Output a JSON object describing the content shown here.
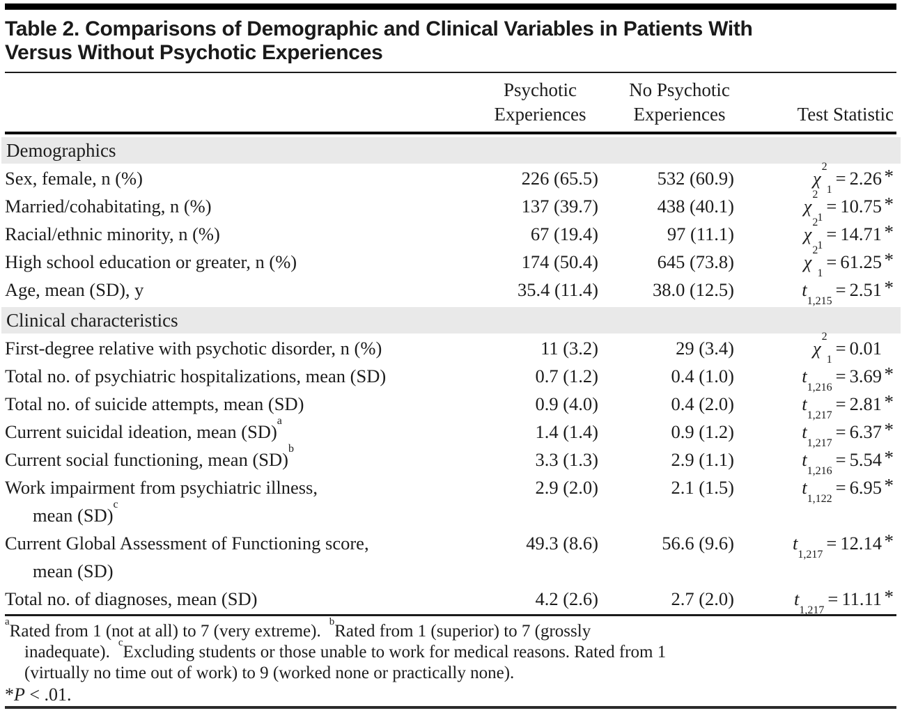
{
  "title": {
    "line1": "Table 2. Comparisons of Demographic and Clinical Variables in Patients With",
    "line2": "Versus Without Psychotic Experiences"
  },
  "header": {
    "col_pe_line1": "Psychotic",
    "col_pe_line2": "Experiences",
    "col_npe_line1": "No Psychotic",
    "col_npe_line2": "Experiences",
    "col_stat": "Test Statistic"
  },
  "glyphs": {
    "equals": "="
  },
  "sections": [
    {
      "label": "Demographics",
      "rows": [
        {
          "label": "Sex, female, n (%)",
          "pe": "226 (65.5)",
          "npe": "532 (60.9)",
          "stat": {
            "sym": "χ",
            "sup": "2",
            "sub": "1",
            "value": "2.26",
            "star": "*"
          }
        },
        {
          "label": "Married/cohabitating, n (%)",
          "pe": "137 (39.7)",
          "npe": "438 (40.1)",
          "stat": {
            "sym": "χ",
            "sup": "2",
            "sub": "1",
            "value": "10.75",
            "star": "*"
          }
        },
        {
          "label": "Racial/ethnic minority, n (%)",
          "pe": "67 (19.4)",
          "npe": "97 (11.1)",
          "stat": {
            "sym": "χ",
            "sup": "2",
            "sub": "1",
            "value": "14.71",
            "star": "*"
          }
        },
        {
          "label": "High school education or greater, n (%)",
          "pe": "174 (50.4)",
          "npe": "645 (73.8)",
          "stat": {
            "sym": "χ",
            "sup": "2",
            "sub": "1",
            "value": "61.25",
            "star": "*"
          }
        },
        {
          "label": "Age, mean (SD), y",
          "pe": "35.4 (11.4)",
          "npe": "38.0 (12.5)",
          "stat": {
            "sym": "t",
            "sup": "",
            "sub": "1,215",
            "value": "2.51",
            "star": "*"
          }
        }
      ]
    },
    {
      "label": "Clinical characteristics",
      "rows": [
        {
          "label": "First-degree relative with psychotic disorder, n (%)",
          "pe": "11 (3.2)",
          "npe": "29 (3.4)",
          "stat": {
            "sym": "χ",
            "sup": "2",
            "sub": "1",
            "value": "0.01",
            "star": ""
          }
        },
        {
          "label": "Total no. of psychiatric hospitalizations, mean (SD)",
          "pe": "0.7 (1.2)",
          "npe": "0.4 (1.0)",
          "stat": {
            "sym": "t",
            "sup": "",
            "sub": "1,216",
            "value": "3.69",
            "star": "*"
          }
        },
        {
          "label": "Total no. of suicide attempts, mean (SD)",
          "pe": "0.9 (4.0)",
          "npe": "0.4 (2.0)",
          "stat": {
            "sym": "t",
            "sup": "",
            "sub": "1,217",
            "value": "2.81",
            "star": "*"
          }
        },
        {
          "label": "Current suicidal ideation, mean (SD)",
          "label_sup": "a",
          "pe": "1.4 (1.4)",
          "npe": "0.9 (1.2)",
          "stat": {
            "sym": "t",
            "sup": "",
            "sub": "1,217",
            "value": "6.37",
            "star": "*"
          }
        },
        {
          "label": "Current social functioning, mean (SD)",
          "label_sup": "b",
          "pe": "3.3 (1.3)",
          "npe": "2.9 (1.1)",
          "stat": {
            "sym": "t",
            "sup": "",
            "sub": "1,216",
            "value": "5.54",
            "star": "*"
          }
        },
        {
          "label": "Work impairment from psychiatric illness,",
          "label2": "mean (SD)",
          "label2_sup": "c",
          "pe": "2.9 (2.0)",
          "npe": "2.1 (1.5)",
          "stat": {
            "sym": "t",
            "sup": "",
            "sub": "1,122",
            "value": "6.95",
            "star": "*"
          }
        },
        {
          "label": "Current Global Assessment of Functioning score,",
          "label2": "mean (SD)",
          "label2_sup": "",
          "pe": "49.3 (8.6)",
          "npe": "56.6 (9.6)",
          "stat": {
            "sym": "t",
            "sup": "",
            "sub": "1,217",
            "value": "12.14",
            "star": "*"
          }
        },
        {
          "label": "Total no. of diagnoses, mean (SD)",
          "pe": "4.2 (2.6)",
          "npe": "2.7 (2.0)",
          "stat": {
            "sym": "t",
            "sup": "",
            "sub": "1,217",
            "value": "11.11",
            "star": "*"
          }
        }
      ]
    }
  ],
  "footnotes": {
    "line1_sup1": "a",
    "line1_part1": "Rated from 1 (not at all) to 7 (very extreme).",
    "line1_sup2": "b",
    "line1_part2": "Rated from 1 (superior) to 7 (grossly",
    "line2_part1": "inadequate).",
    "line2_sup1": "c",
    "line2_part2": "Excluding students or those unable to work for medical reasons. Rated from 1",
    "line3": "(virtually no time out of work) to 9 (worked none or practically none).",
    "sig_star": "*",
    "sig_p": "P",
    "sig_rest": " < .01."
  }
}
